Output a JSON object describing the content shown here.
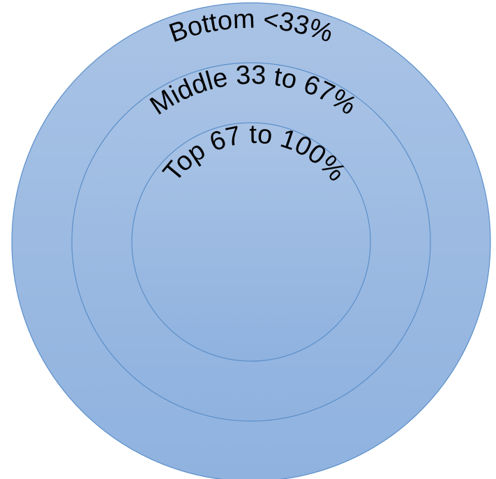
{
  "rings": [
    {
      "id": "bottom",
      "label": "Bottom <33%"
    },
    {
      "id": "middle",
      "label": "Middle 33 to 67%"
    },
    {
      "id": "top",
      "label": "Top 67 to 100%"
    }
  ],
  "colors": {
    "fill_top": "#a9c3e5",
    "fill_bottom": "#8fb2df",
    "stroke": "#5b8fc9",
    "text": "#000000"
  }
}
